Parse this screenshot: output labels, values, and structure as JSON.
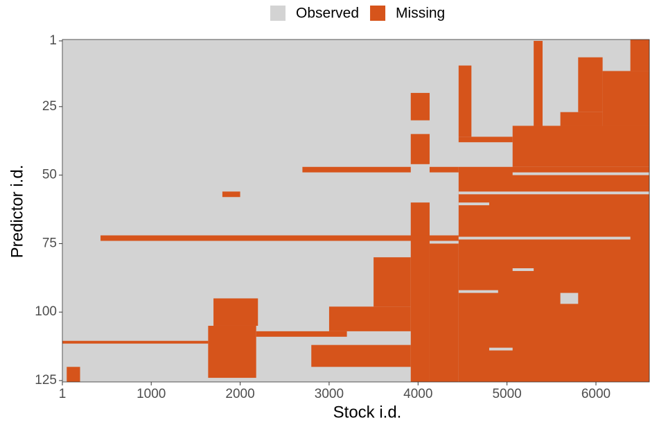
{
  "chart_data": {
    "type": "heatmap",
    "x_label": "Stock i.d.",
    "y_label": "Predictor i.d.",
    "xlim": [
      1,
      6600
    ],
    "ylim": [
      0.5,
      125.5
    ],
    "xticks": [
      1,
      1000,
      2000,
      3000,
      4000,
      5000,
      6000
    ],
    "yticks": [
      1,
      25,
      50,
      75,
      100,
      125
    ],
    "y_reversed": true,
    "legend_position": "top",
    "series": [
      {
        "name": "Observed",
        "color": "#d3d3d3",
        "blocks": [
          [
            4456,
            6387,
            72.5,
            73.5
          ],
          [
            4456,
            6600,
            56,
            57
          ],
          [
            4456,
            4800,
            60,
            61
          ],
          [
            5063,
            6600,
            49,
            50
          ],
          [
            4800,
            5063,
            113,
            114
          ],
          [
            5600,
            5800,
            93,
            97
          ],
          [
            5063,
            5300,
            84,
            85
          ],
          [
            4456,
            4900,
            92,
            93
          ]
        ]
      },
      {
        "name": "Missing",
        "color": "#d6541b",
        "blocks": [
          [
            4456,
            6600,
            47,
            125.5
          ],
          [
            5063,
            6600,
            32,
            47
          ],
          [
            6075,
            6600,
            12,
            32
          ],
          [
            6387,
            6600,
            0.5,
            12
          ],
          [
            5600,
            6075,
            27,
            32
          ],
          [
            4130,
            4456,
            75,
            125.5
          ],
          [
            4130,
            4456,
            47,
            49
          ],
          [
            3918,
            4130,
            35,
            46
          ],
          [
            3918,
            4130,
            20,
            30
          ],
          [
            3918,
            4130,
            60,
            125.5
          ],
          [
            430,
            4456,
            72,
            74
          ],
          [
            1640,
            2180,
            105,
            124
          ],
          [
            2180,
            3200,
            107,
            109
          ],
          [
            2800,
            3918,
            112,
            120
          ],
          [
            1,
            1640,
            110.5,
            111.5
          ],
          [
            4456,
            5063,
            36,
            38
          ],
          [
            1800,
            2000,
            56,
            58
          ],
          [
            2700,
            3918,
            47,
            49
          ],
          [
            1700,
            2200,
            95,
            105
          ],
          [
            3000,
            3918,
            98,
            107
          ],
          [
            3500,
            3918,
            80,
            98
          ],
          [
            50,
            200,
            120,
            125.5
          ],
          [
            5800,
            6075,
            7,
            27
          ],
          [
            5300,
            5400,
            1,
            32
          ],
          [
            4456,
            4600,
            10,
            36
          ]
        ]
      }
    ]
  }
}
